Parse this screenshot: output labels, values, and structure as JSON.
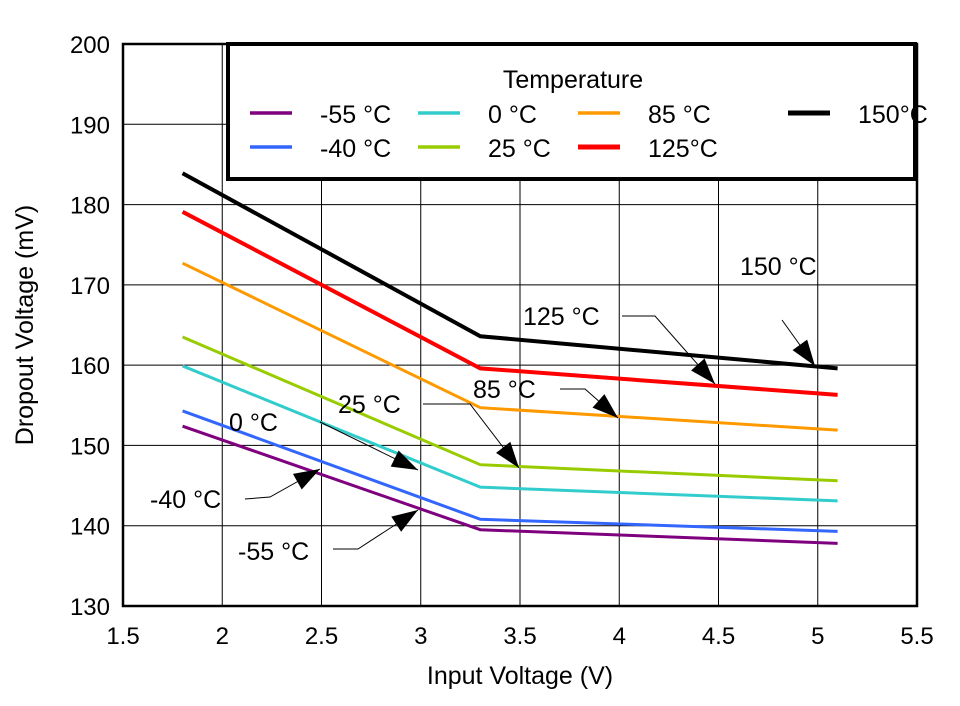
{
  "chart_data": {
    "type": "line",
    "xlabel": "Input Voltage (V)",
    "ylabel": "Dropout Voltage (mV)",
    "xlim": [
      1.5,
      5.5
    ],
    "ylim": [
      130,
      200
    ],
    "xticks": [
      "1.5",
      "2",
      "2.5",
      "3",
      "3.5",
      "4",
      "4.5",
      "5",
      "5.5"
    ],
    "yticks": [
      "130",
      "140",
      "150",
      "160",
      "170",
      "180",
      "190",
      "200"
    ],
    "grid": true,
    "legend": {
      "title": "Temperature",
      "placement": "top-right",
      "entries": [
        "-55 °C",
        "0 °C",
        "85 °C",
        "150°C",
        "-40 °C",
        "25 °C",
        "125°C"
      ]
    },
    "x": [
      1.8,
      3.3,
      5.1
    ],
    "series": [
      {
        "name": "-55 °C",
        "color": "#7f007f",
        "values": [
          152.4,
          139.5,
          137.8
        ]
      },
      {
        "name": "-40 °C",
        "color": "#3366ff",
        "values": [
          154.3,
          140.8,
          139.3
        ]
      },
      {
        "name": "0 °C",
        "color": "#33cccc",
        "values": [
          159.9,
          144.8,
          143.1
        ]
      },
      {
        "name": "25 °C",
        "color": "#99cc00",
        "values": [
          163.5,
          147.6,
          145.6
        ]
      },
      {
        "name": "85 °C",
        "color": "#ff9900",
        "values": [
          172.7,
          154.7,
          151.9
        ]
      },
      {
        "name": "125°C",
        "color": "#ff0000",
        "values": [
          179.1,
          159.6,
          156.3
        ]
      },
      {
        "name": "150°C",
        "color": "#000000",
        "values": [
          183.9,
          163.6,
          159.6
        ]
      }
    ],
    "annotations": [
      "150 °C",
      "125 °C",
      "85 °C",
      "25 °C",
      "0 °C",
      "-40 °C",
      "-55 °C"
    ]
  }
}
